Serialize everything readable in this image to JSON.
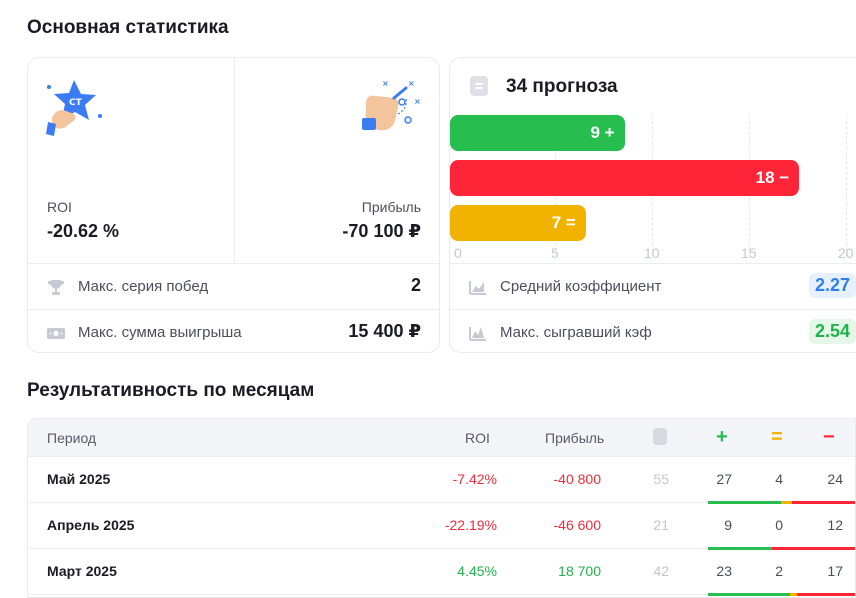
{
  "main_stats": {
    "title": "Основная статистика",
    "roi_label": "ROI",
    "roi_value": "-20.62 %",
    "profit_label": "Прибыль",
    "profit_value": "-70 100 ₽",
    "win_streak_label": "Макс. серия побед",
    "win_streak_value": "2",
    "max_win_label": "Макс. сумма выигрыша",
    "max_win_value": "15 400 ₽"
  },
  "forecasts": {
    "title": "34 прогноза",
    "avg_coef_label": "Средний коэффициент",
    "avg_coef_value": "2.27",
    "max_coef_label": "Макс. сыгравший кэф",
    "max_coef_value": "2.54"
  },
  "chart_data": {
    "type": "bar",
    "orientation": "horizontal",
    "categories": [
      "+",
      "−",
      "="
    ],
    "values": [
      9,
      18,
      7
    ],
    "labels": [
      "9 +",
      "18 −",
      "7 ="
    ],
    "colors": [
      "#27bd4f",
      "#ff2538",
      "#f2b200"
    ],
    "xlim": [
      0,
      20
    ],
    "ticks": [
      "0",
      "5",
      "10",
      "15",
      "20"
    ],
    "grid": true
  },
  "monthly": {
    "title": "Результативность по месяцам",
    "headers": {
      "period": "Период",
      "roi": "ROI",
      "profit": "Прибыль",
      "plus": "+",
      "equal": "=",
      "minus": "−"
    },
    "rows": [
      {
        "period": "Май 2025",
        "roi": "-7.42%",
        "profit": "-40 800",
        "total": "55",
        "wins": "27",
        "draws": "4",
        "losses": "24",
        "trend": "negative"
      },
      {
        "period": "Апрель 2025",
        "roi": "-22.19%",
        "profit": "-46 600",
        "total": "21",
        "wins": "9",
        "draws": "0",
        "losses": "12",
        "trend": "negative"
      },
      {
        "period": "Март 2025",
        "roi": "4.45%",
        "profit": "18 700",
        "total": "42",
        "wins": "23",
        "draws": "2",
        "losses": "17",
        "trend": "positive"
      }
    ]
  },
  "colors": {
    "win": "#27bd4f",
    "loss": "#ff2538",
    "draw": "#f2b200",
    "badge_blue_bg": "#e6f1fd",
    "badge_blue_text": "#2f80ed",
    "badge_green_bg": "#e4f7e9",
    "badge_green_text": "#22b24c"
  }
}
